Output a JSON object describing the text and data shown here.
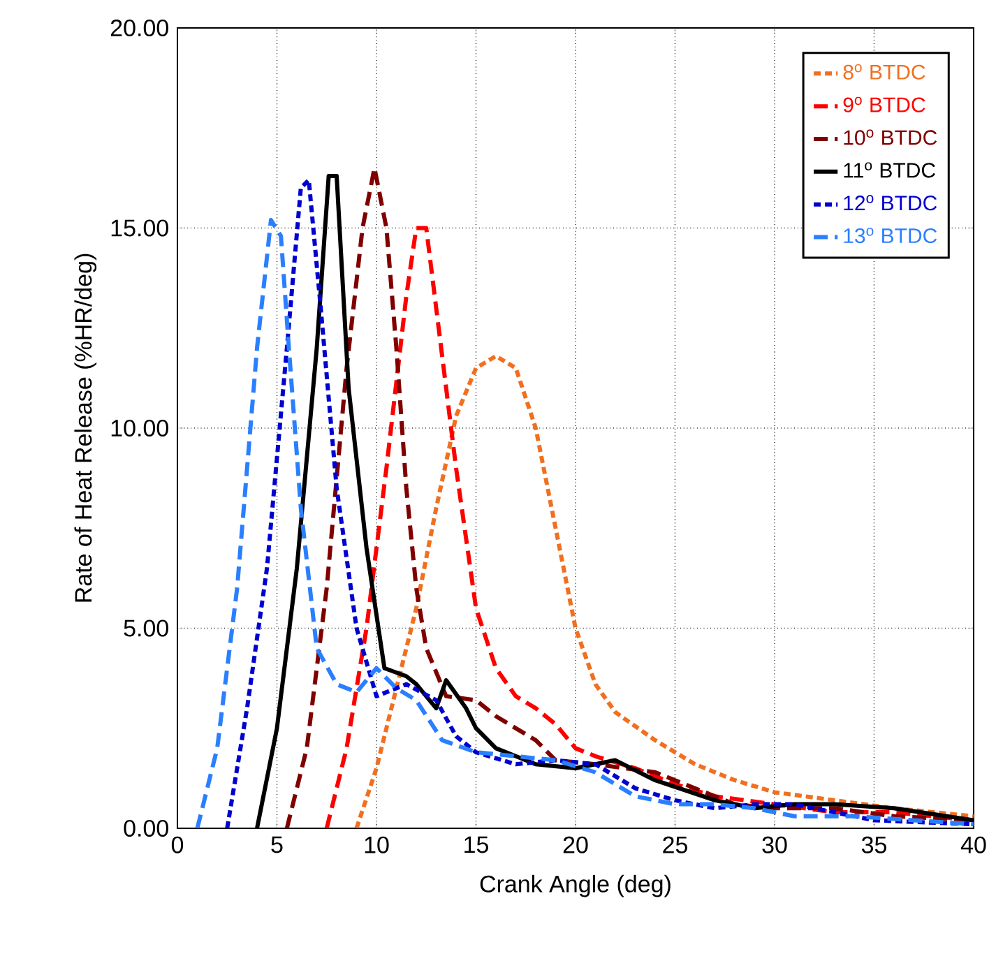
{
  "chart_data": {
    "type": "line",
    "xlabel": "Crank Angle (deg)",
    "ylabel": "Rate of Heat Release (%HR/deg)",
    "xlim": [
      0,
      40
    ],
    "ylim": [
      0,
      20
    ],
    "xticks": [
      0,
      5,
      10,
      15,
      20,
      25,
      30,
      35,
      40
    ],
    "yticks": [
      {
        "value": 0,
        "label": "0.00"
      },
      {
        "value": 5,
        "label": "5.00"
      },
      {
        "value": 10,
        "label": "10.00"
      },
      {
        "value": 15,
        "label": "15.00"
      },
      {
        "value": 20,
        "label": "20.00"
      }
    ],
    "grid": true,
    "legend": "top right",
    "marker": "none",
    "series": [
      {
        "name": "8$^{o}$ BTDC",
        "color": "#f07020",
        "line_style": "dotted",
        "x": [
          9,
          10,
          11,
          12,
          13,
          14,
          15,
          16,
          17,
          18,
          19,
          20,
          21,
          22,
          24,
          26,
          28,
          30,
          33,
          36,
          40
        ],
        "values": [
          0,
          1.5,
          3.5,
          5.5,
          8,
          10.3,
          11.5,
          11.8,
          11.5,
          10,
          7.5,
          5,
          3.6,
          2.9,
          2.2,
          1.6,
          1.2,
          0.9,
          0.7,
          0.5,
          0.3
        ]
      },
      {
        "name": "9$^{o}$ BTDC",
        "color": "#ff0000",
        "line_style": "dashed",
        "x": [
          7.5,
          8.5,
          9.5,
          10.5,
          11.5,
          12,
          12.5,
          13,
          14,
          15,
          16,
          17,
          18,
          19,
          20,
          21,
          23,
          25,
          27,
          30,
          33,
          36,
          40
        ],
        "values": [
          0,
          2,
          5,
          9,
          13.3,
          15,
          15,
          13,
          9,
          5.5,
          4,
          3.3,
          3,
          2.6,
          2,
          1.8,
          1.5,
          1.1,
          0.8,
          0.6,
          0.4,
          0.4,
          0.2
        ]
      },
      {
        "name": "10$^{o}$ BTDC",
        "color": "#800000",
        "line_style": "dashed",
        "x": [
          5.5,
          6.5,
          7.5,
          8.5,
          9.3,
          9.9,
          10.5,
          11,
          11.5,
          12,
          12.5,
          13.5,
          15,
          16,
          18,
          19,
          21,
          24,
          26,
          28,
          30,
          33,
          36,
          40
        ],
        "values": [
          0,
          2,
          6,
          11.5,
          15,
          16.5,
          15,
          12,
          8.5,
          6,
          4.5,
          3.3,
          3.2,
          2.8,
          2.2,
          1.7,
          1.6,
          1.4,
          1,
          0.6,
          0.5,
          0.5,
          0.3,
          0.2
        ]
      },
      {
        "name": "11$^{o}$ BTDC",
        "color": "#000000",
        "line_style": "solid",
        "x": [
          4,
          5,
          6,
          7,
          7.6,
          8,
          8.6,
          9.5,
          10.4,
          11.5,
          12,
          13,
          13.5,
          14.5,
          15,
          16,
          17,
          18,
          20,
          22,
          24,
          27,
          29,
          31,
          33,
          36,
          40
        ],
        "values": [
          0,
          2.5,
          6.5,
          12,
          16.3,
          16.3,
          11,
          7,
          4,
          3.8,
          3.6,
          3,
          3.7,
          3,
          2.5,
          2,
          1.8,
          1.6,
          1.5,
          1.7,
          1.2,
          0.7,
          0.5,
          0.6,
          0.6,
          0.5,
          0.2
        ]
      },
      {
        "name": "12$^{o}$ BTDC",
        "color": "#0000d0",
        "line_style": "dotted",
        "x": [
          2.5,
          3.5,
          4.5,
          5.5,
          6.2,
          6.6,
          7.2,
          8,
          9,
          10,
          11.5,
          13,
          14,
          15,
          17,
          19,
          21,
          23,
          25,
          27,
          29,
          31,
          33,
          35,
          40
        ],
        "values": [
          0,
          3,
          6.5,
          12,
          16,
          16.2,
          13,
          8.5,
          5,
          3.3,
          3.6,
          3.2,
          2.3,
          1.9,
          1.6,
          1.7,
          1.6,
          1,
          0.7,
          0.5,
          0.6,
          0.6,
          0.4,
          0.2,
          0.1
        ]
      },
      {
        "name": "13$^{o}$ BTDC",
        "color": "#2a7fff",
        "line_style": "dashed",
        "x": [
          1,
          2,
          3,
          4,
          4.7,
          5.2,
          5.6,
          6.2,
          7,
          8,
          9,
          10,
          11,
          12,
          13.3,
          15,
          17,
          19,
          21,
          23,
          25,
          27,
          29,
          31,
          34,
          37,
          40
        ],
        "values": [
          0,
          2,
          6,
          12,
          15.2,
          14.8,
          12,
          8,
          4.5,
          3.6,
          3.4,
          4,
          3.5,
          3.2,
          2.2,
          1.9,
          1.8,
          1.7,
          1.4,
          0.8,
          0.6,
          0.6,
          0.5,
          0.3,
          0.3,
          0.2,
          0.1
        ]
      }
    ]
  }
}
